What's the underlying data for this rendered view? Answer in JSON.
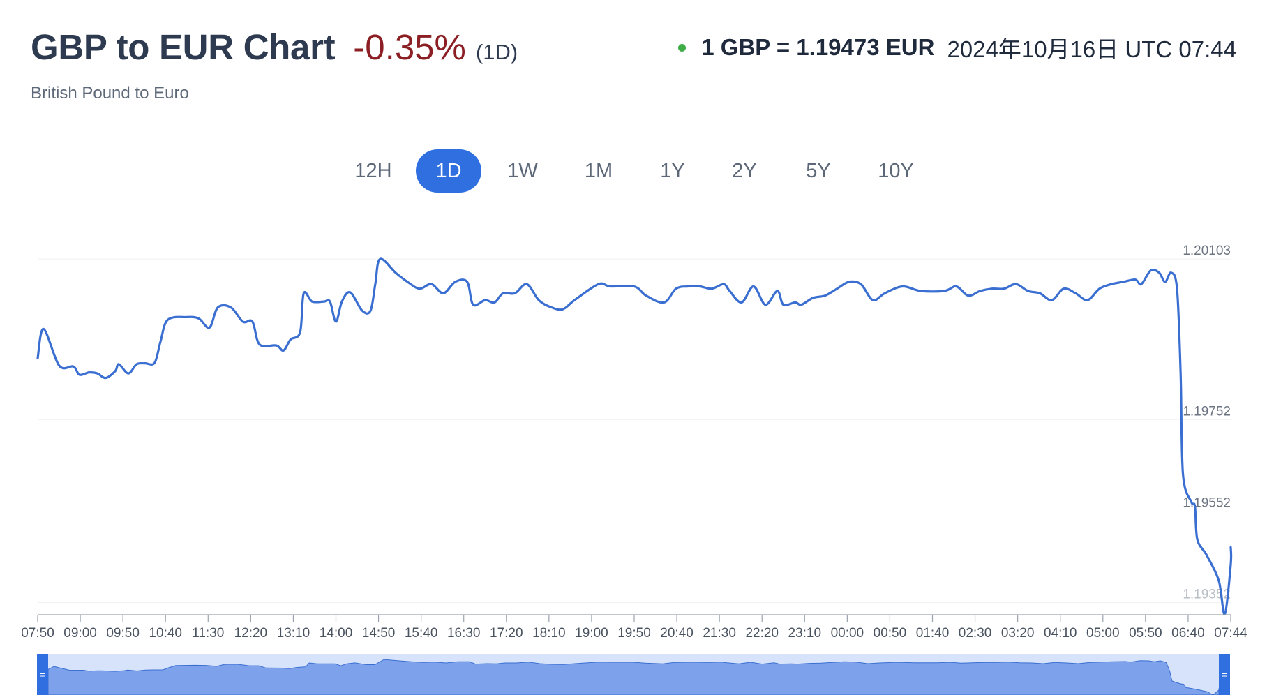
{
  "header": {
    "title": "GBP to EUR Chart",
    "change": "-0.35%",
    "period": "(1D)",
    "subtitle": "British Pound to Euro",
    "rate": "1 GBP = 1.19473 EUR",
    "timestamp": "2024年10月16日 UTC 07:44"
  },
  "colors": {
    "line": "#3a6fd1",
    "active_tab": "#2f6fe0",
    "negative": "#8b1f24",
    "live_dot": "#3fae49",
    "navigator_fill": "#7ea1eb",
    "navigator_bg": "#d6e3fa"
  },
  "tabs": [
    {
      "label": "12H",
      "active": false
    },
    {
      "label": "1D",
      "active": true
    },
    {
      "label": "1W",
      "active": false
    },
    {
      "label": "1M",
      "active": false
    },
    {
      "label": "1Y",
      "active": false
    },
    {
      "label": "2Y",
      "active": false
    },
    {
      "label": "5Y",
      "active": false
    },
    {
      "label": "10Y",
      "active": false
    }
  ],
  "navigator": {
    "handle_glyph": "="
  },
  "chart_data": {
    "type": "line",
    "x_tick_labels": [
      "07:50",
      "09:00",
      "09:50",
      "10:40",
      "11:30",
      "12:20",
      "13:10",
      "14:00",
      "14:50",
      "15:40",
      "16:30",
      "17:20",
      "18:10",
      "19:00",
      "19:50",
      "20:40",
      "21:30",
      "22:20",
      "23:10",
      "00:00",
      "00:50",
      "01:40",
      "02:30",
      "03:20",
      "04:10",
      "05:00",
      "05:50",
      "06:40",
      "07:44"
    ],
    "y_tick_labels": [
      "1.20103",
      "1.19752",
      "1.19552",
      "1.19352"
    ],
    "ylim": [
      1.19327,
      1.20123
    ],
    "grid": true,
    "legend": false,
    "x_start": "07:44",
    "x_end": "07:44",
    "series": [
      {
        "values": [
          [
            0,
            1.19886
          ],
          [
            0.005,
            1.1995
          ],
          [
            0.018,
            1.1987
          ],
          [
            0.03,
            1.19868
          ],
          [
            0.035,
            1.1985
          ],
          [
            0.043,
            1.19855
          ],
          [
            0.05,
            1.19853
          ],
          [
            0.057,
            1.19843
          ],
          [
            0.065,
            1.19858
          ],
          [
            0.068,
            1.19873
          ],
          [
            0.076,
            1.19853
          ],
          [
            0.083,
            1.19873
          ],
          [
            0.09,
            1.19875
          ],
          [
            0.098,
            1.19876
          ],
          [
            0.103,
            1.19923
          ],
          [
            0.109,
            1.1997
          ],
          [
            0.125,
            1.19976
          ],
          [
            0.135,
            1.19973
          ],
          [
            0.144,
            1.19953
          ],
          [
            0.151,
            1.19997
          ],
          [
            0.162,
            1.19997
          ],
          [
            0.172,
            1.19966
          ],
          [
            0.18,
            1.19966
          ],
          [
            0.186,
            1.19916
          ],
          [
            0.2,
            1.19914
          ],
          [
            0.206,
            1.19903
          ],
          [
            0.212,
            1.19927
          ],
          [
            0.22,
            1.19943
          ],
          [
            0.223,
            1.20028
          ],
          [
            0.23,
            1.2001
          ],
          [
            0.24,
            1.2001
          ],
          [
            0.245,
            1.2001
          ],
          [
            0.25,
            1.19966
          ],
          [
            0.255,
            1.2001
          ],
          [
            0.262,
            1.2003
          ],
          [
            0.272,
            1.1999
          ],
          [
            0.279,
            1.1999
          ],
          [
            0.283,
            1.20048
          ],
          [
            0.287,
            1.20103
          ],
          [
            0.3,
            1.20073
          ],
          [
            0.31,
            1.20053
          ],
          [
            0.32,
            1.20038
          ],
          [
            0.33,
            1.20048
          ],
          [
            0.34,
            1.20028
          ],
          [
            0.35,
            1.20053
          ],
          [
            0.36,
            1.20053
          ],
          [
            0.365,
            1.20003
          ],
          [
            0.375,
            1.20013
          ],
          [
            0.383,
            1.20008
          ],
          [
            0.39,
            1.20028
          ],
          [
            0.4,
            1.20028
          ],
          [
            0.41,
            1.20048
          ],
          [
            0.42,
            1.20013
          ],
          [
            0.43,
            1.19998
          ],
          [
            0.44,
            1.19993
          ],
          [
            0.45,
            1.20013
          ],
          [
            0.47,
            1.20048
          ],
          [
            0.48,
            1.20043
          ],
          [
            0.5,
            1.20043
          ],
          [
            0.51,
            1.20023
          ],
          [
            0.525,
            1.20008
          ],
          [
            0.535,
            1.20038
          ],
          [
            0.545,
            1.20043
          ],
          [
            0.555,
            1.20043
          ],
          [
            0.565,
            1.20038
          ],
          [
            0.575,
            1.20048
          ],
          [
            0.58,
            1.20033
          ],
          [
            0.59,
            1.20008
          ],
          [
            0.6,
            1.20043
          ],
          [
            0.61,
            1.20003
          ],
          [
            0.62,
            1.20033
          ],
          [
            0.625,
            1.20003
          ],
          [
            0.635,
            1.20008
          ],
          [
            0.64,
            1.20003
          ],
          [
            0.65,
            1.20018
          ],
          [
            0.66,
            1.20023
          ],
          [
            0.67,
            1.20038
          ],
          [
            0.68,
            1.20053
          ],
          [
            0.69,
            1.20048
          ],
          [
            0.7,
            1.20013
          ],
          [
            0.71,
            1.20028
          ],
          [
            0.725,
            1.20043
          ],
          [
            0.74,
            1.20033
          ],
          [
            0.76,
            1.20033
          ],
          [
            0.77,
            1.20043
          ],
          [
            0.78,
            1.20023
          ],
          [
            0.79,
            1.20033
          ],
          [
            0.8,
            1.20038
          ],
          [
            0.81,
            1.20038
          ],
          [
            0.82,
            1.20048
          ],
          [
            0.83,
            1.20033
          ],
          [
            0.84,
            1.20028
          ],
          [
            0.85,
            1.20013
          ],
          [
            0.86,
            1.20038
          ],
          [
            0.87,
            1.20028
          ],
          [
            0.88,
            1.20013
          ],
          [
            0.89,
            1.20038
          ],
          [
            0.9,
            1.20048
          ],
          [
            0.91,
            1.20053
          ],
          [
            0.92,
            1.20058
          ],
          [
            0.925,
            1.20048
          ],
          [
            0.933,
            1.20078
          ],
          [
            0.94,
            1.20073
          ],
          [
            0.945,
            1.20053
          ],
          [
            0.95,
            1.20073
          ],
          [
            0.955,
            1.20038
          ],
          [
            0.958,
            1.19852
          ],
          [
            0.96,
            1.19632
          ],
          [
            0.967,
            1.19572
          ],
          [
            0.97,
            1.19562
          ],
          [
            0.972,
            1.1949
          ],
          [
            0.98,
            1.19455
          ],
          [
            0.99,
            1.194
          ],
          [
            0.995,
            1.19327
          ],
          [
            1,
            1.19435
          ],
          [
            1.0,
            1.19473
          ]
        ]
      }
    ]
  }
}
